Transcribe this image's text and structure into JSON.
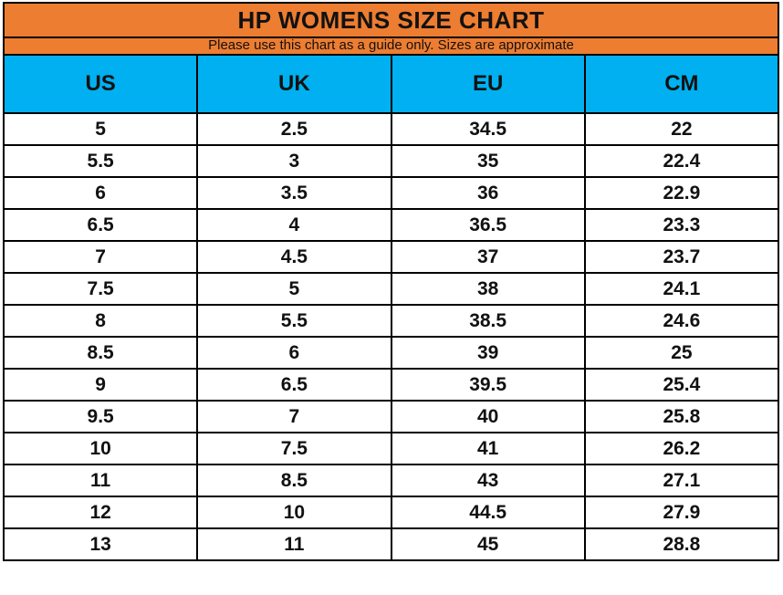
{
  "title": "HP WOMENS SIZE CHART",
  "subtitle": "Please use this chart as a guide only. Sizes are approximate",
  "colors": {
    "title_band": "#ED7D31",
    "header_band": "#00B0F0",
    "border": "#000000",
    "row_bg": "#FFFFFF",
    "text": "#111111"
  },
  "chart_data": {
    "type": "table",
    "title": "HP WOMENS SIZE CHART",
    "subtitle": "Please use this chart as a guide only. Sizes are approximate",
    "columns": [
      "US",
      "UK",
      "EU",
      "CM"
    ],
    "rows": [
      [
        "5",
        "2.5",
        "34.5",
        "22"
      ],
      [
        "5.5",
        "3",
        "35",
        "22.4"
      ],
      [
        "6",
        "3.5",
        "36",
        "22.9"
      ],
      [
        "6.5",
        "4",
        "36.5",
        "23.3"
      ],
      [
        "7",
        "4.5",
        "37",
        "23.7"
      ],
      [
        "7.5",
        "5",
        "38",
        "24.1"
      ],
      [
        "8",
        "5.5",
        "38.5",
        "24.6"
      ],
      [
        "8.5",
        "6",
        "39",
        "25"
      ],
      [
        "9",
        "6.5",
        "39.5",
        "25.4"
      ],
      [
        "9.5",
        "7",
        "40",
        "25.8"
      ],
      [
        "10",
        "7.5",
        "41",
        "26.2"
      ],
      [
        "11",
        "8.5",
        "43",
        "27.1"
      ],
      [
        "12",
        "10",
        "44.5",
        "27.9"
      ],
      [
        "13",
        "11",
        "45",
        "28.8"
      ]
    ]
  }
}
